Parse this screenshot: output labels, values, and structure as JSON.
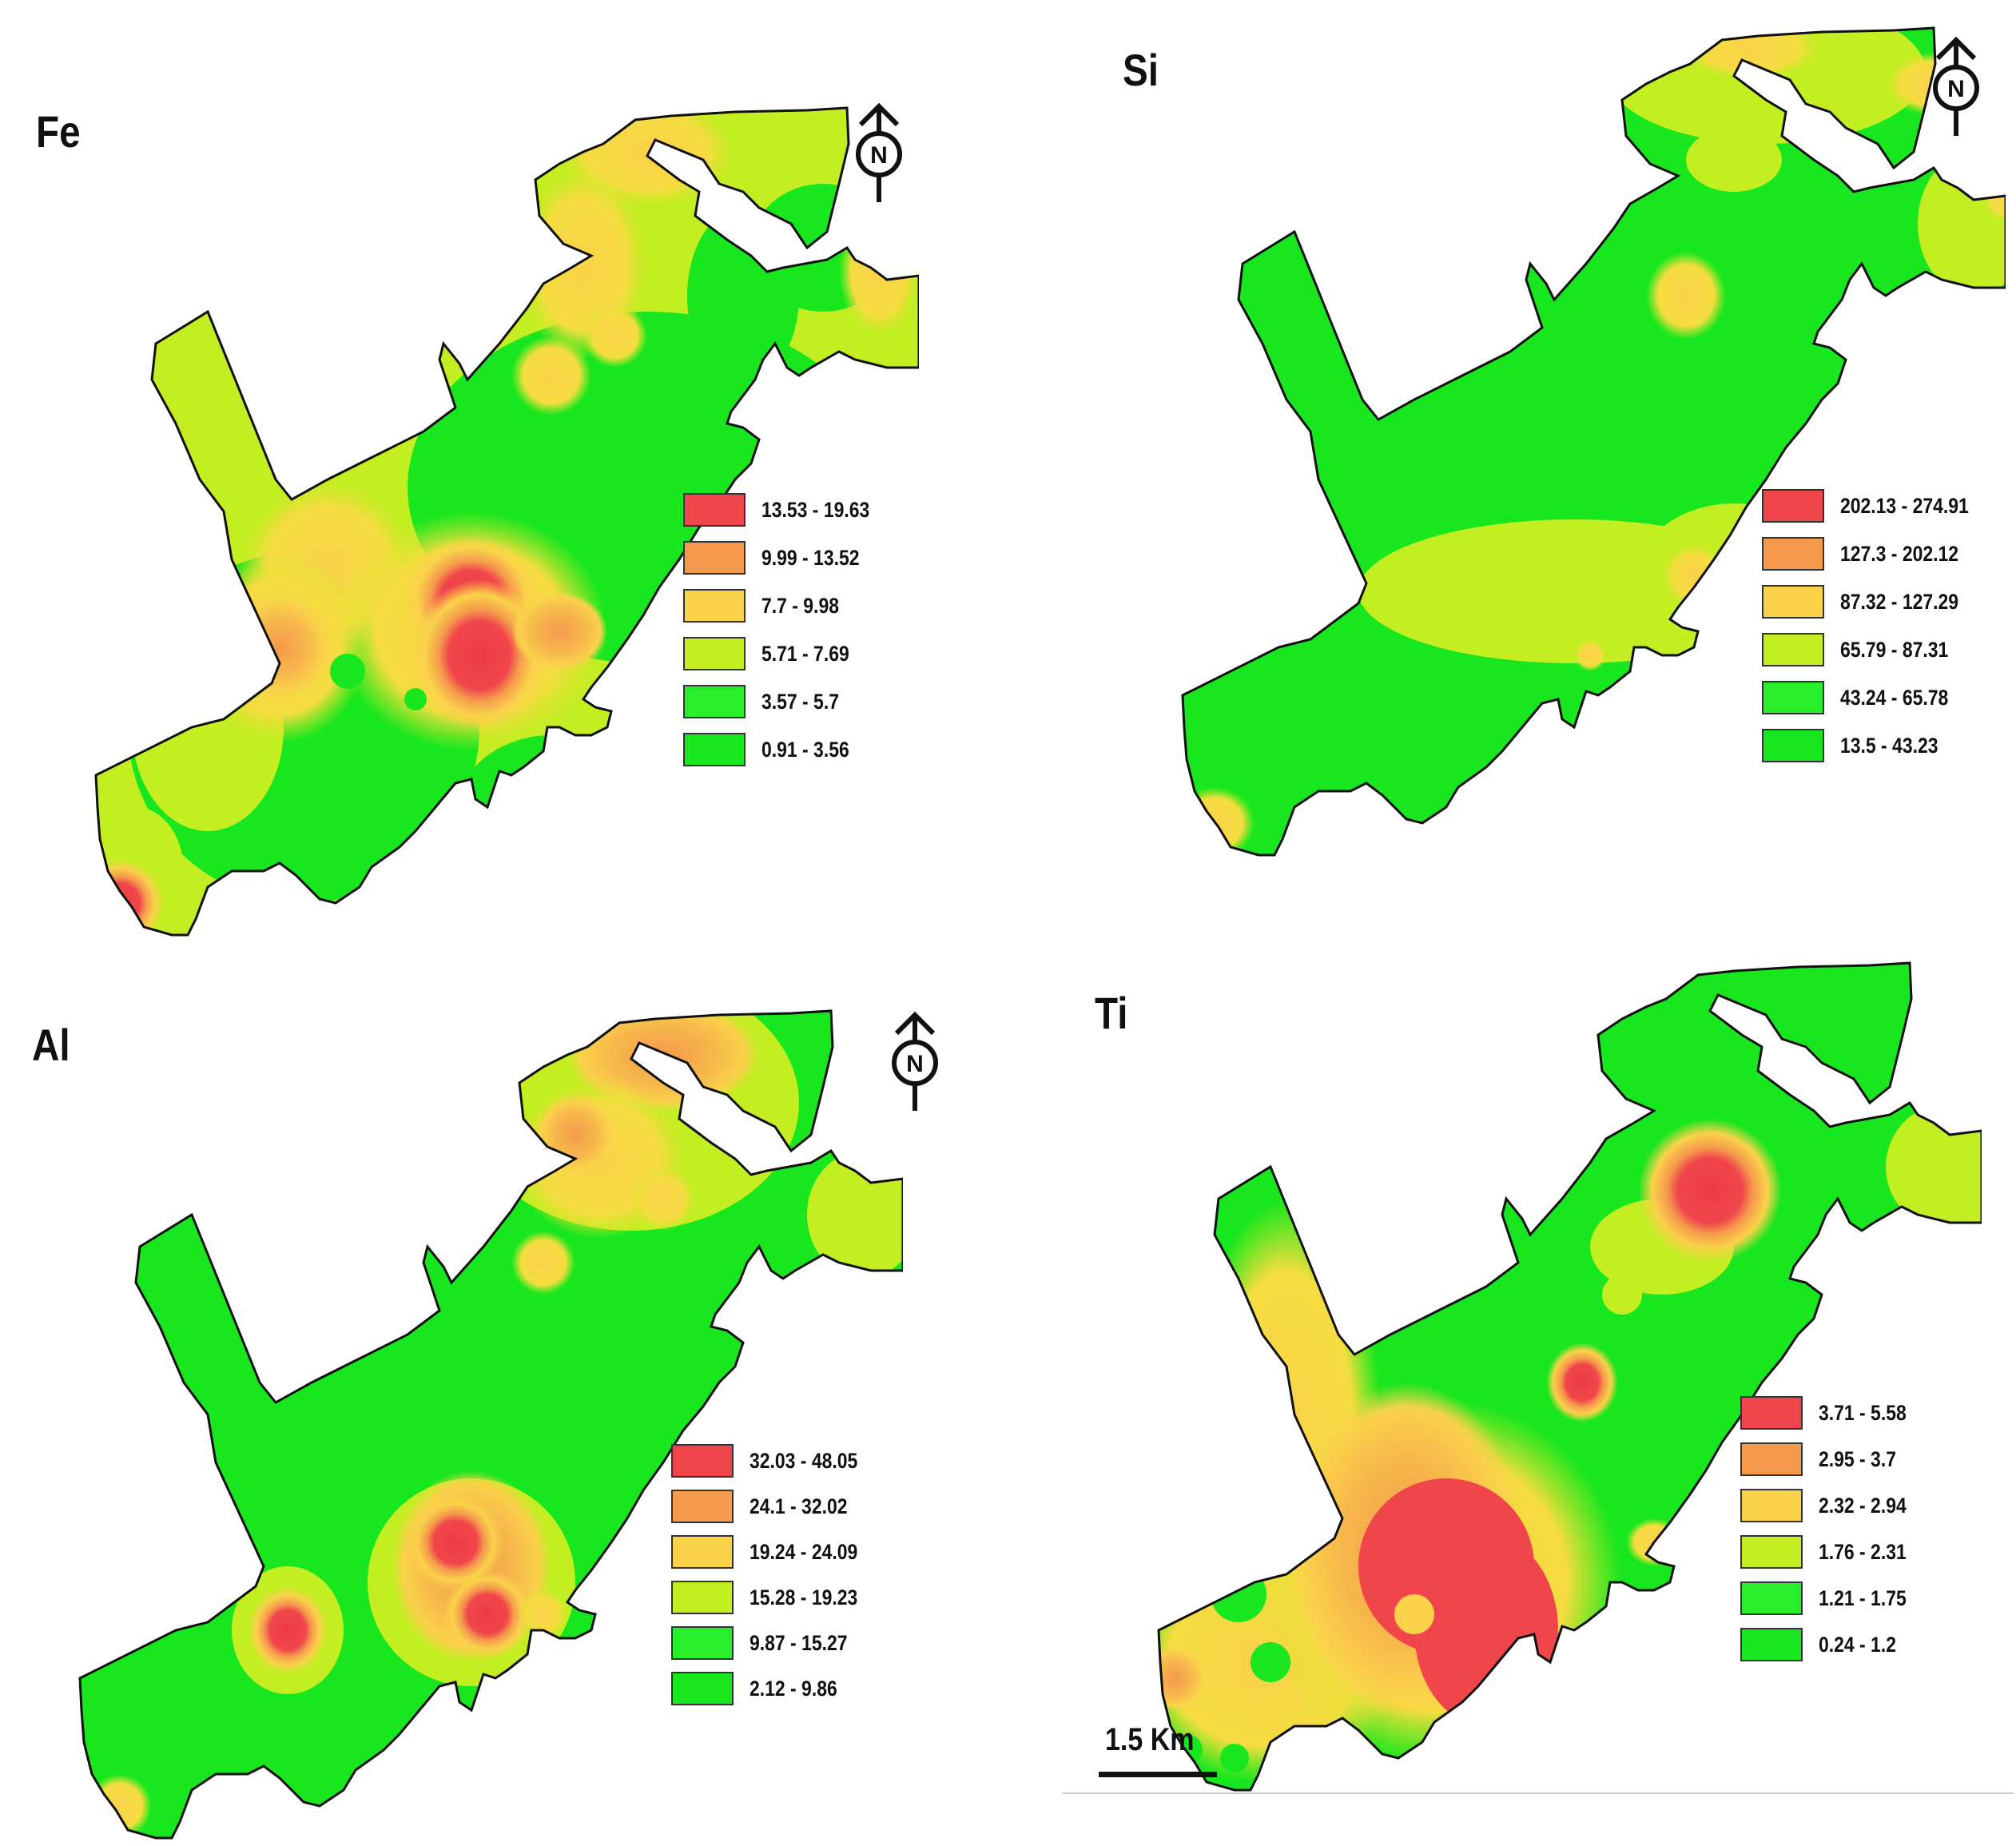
{
  "panels": [
    {
      "id": "fe",
      "title": "Fe",
      "legend": [
        {
          "range": "13.53 - 19.63",
          "color": "#f0464b"
        },
        {
          "range": "9.99 - 13.52",
          "color": "#f59a4c"
        },
        {
          "range": "7.7 - 9.98",
          "color": "#fad24a"
        },
        {
          "range": "5.71 - 7.69",
          "color": "#c2ee22"
        },
        {
          "range": "3.57 - 5.7",
          "color": "#28ee2c"
        },
        {
          "range": "0.91 - 3.56",
          "color": "#18e61e"
        }
      ]
    },
    {
      "id": "si",
      "title": "Si",
      "legend": [
        {
          "range": "202.13 - 274.91",
          "color": "#f0464b"
        },
        {
          "range": "127.3 - 202.12",
          "color": "#f59a4c"
        },
        {
          "range": "87.32 - 127.29",
          "color": "#fad24a"
        },
        {
          "range": "65.79 - 87.31",
          "color": "#c2ee22"
        },
        {
          "range": "43.24 - 65.78",
          "color": "#28ee2c"
        },
        {
          "range": "13.5 - 43.23",
          "color": "#18e61e"
        }
      ]
    },
    {
      "id": "al",
      "title": "Al",
      "legend": [
        {
          "range": "32.03 - 48.05",
          "color": "#f0464b"
        },
        {
          "range": "24.1 - 32.02",
          "color": "#f59a4c"
        },
        {
          "range": "19.24 - 24.09",
          "color": "#fad24a"
        },
        {
          "range": "15.28 - 19.23",
          "color": "#c2ee22"
        },
        {
          "range": "9.87 - 15.27",
          "color": "#28ee2c"
        },
        {
          "range": "2.12 - 9.86",
          "color": "#18e61e"
        }
      ]
    },
    {
      "id": "ti",
      "title": "Ti",
      "legend": [
        {
          "range": "3.71 - 5.58",
          "color": "#f0464b"
        },
        {
          "range": "2.95 - 3.7",
          "color": "#f59a4c"
        },
        {
          "range": "2.32 - 2.94",
          "color": "#fad24a"
        },
        {
          "range": "1.76 - 2.31",
          "color": "#c2ee22"
        },
        {
          "range": "1.21 - 1.75",
          "color": "#28ee2c"
        },
        {
          "range": "0.24 - 1.2",
          "color": "#18e61e"
        }
      ]
    }
  ],
  "north_label": "N",
  "scale_bar": {
    "label": "1.5 Km"
  }
}
